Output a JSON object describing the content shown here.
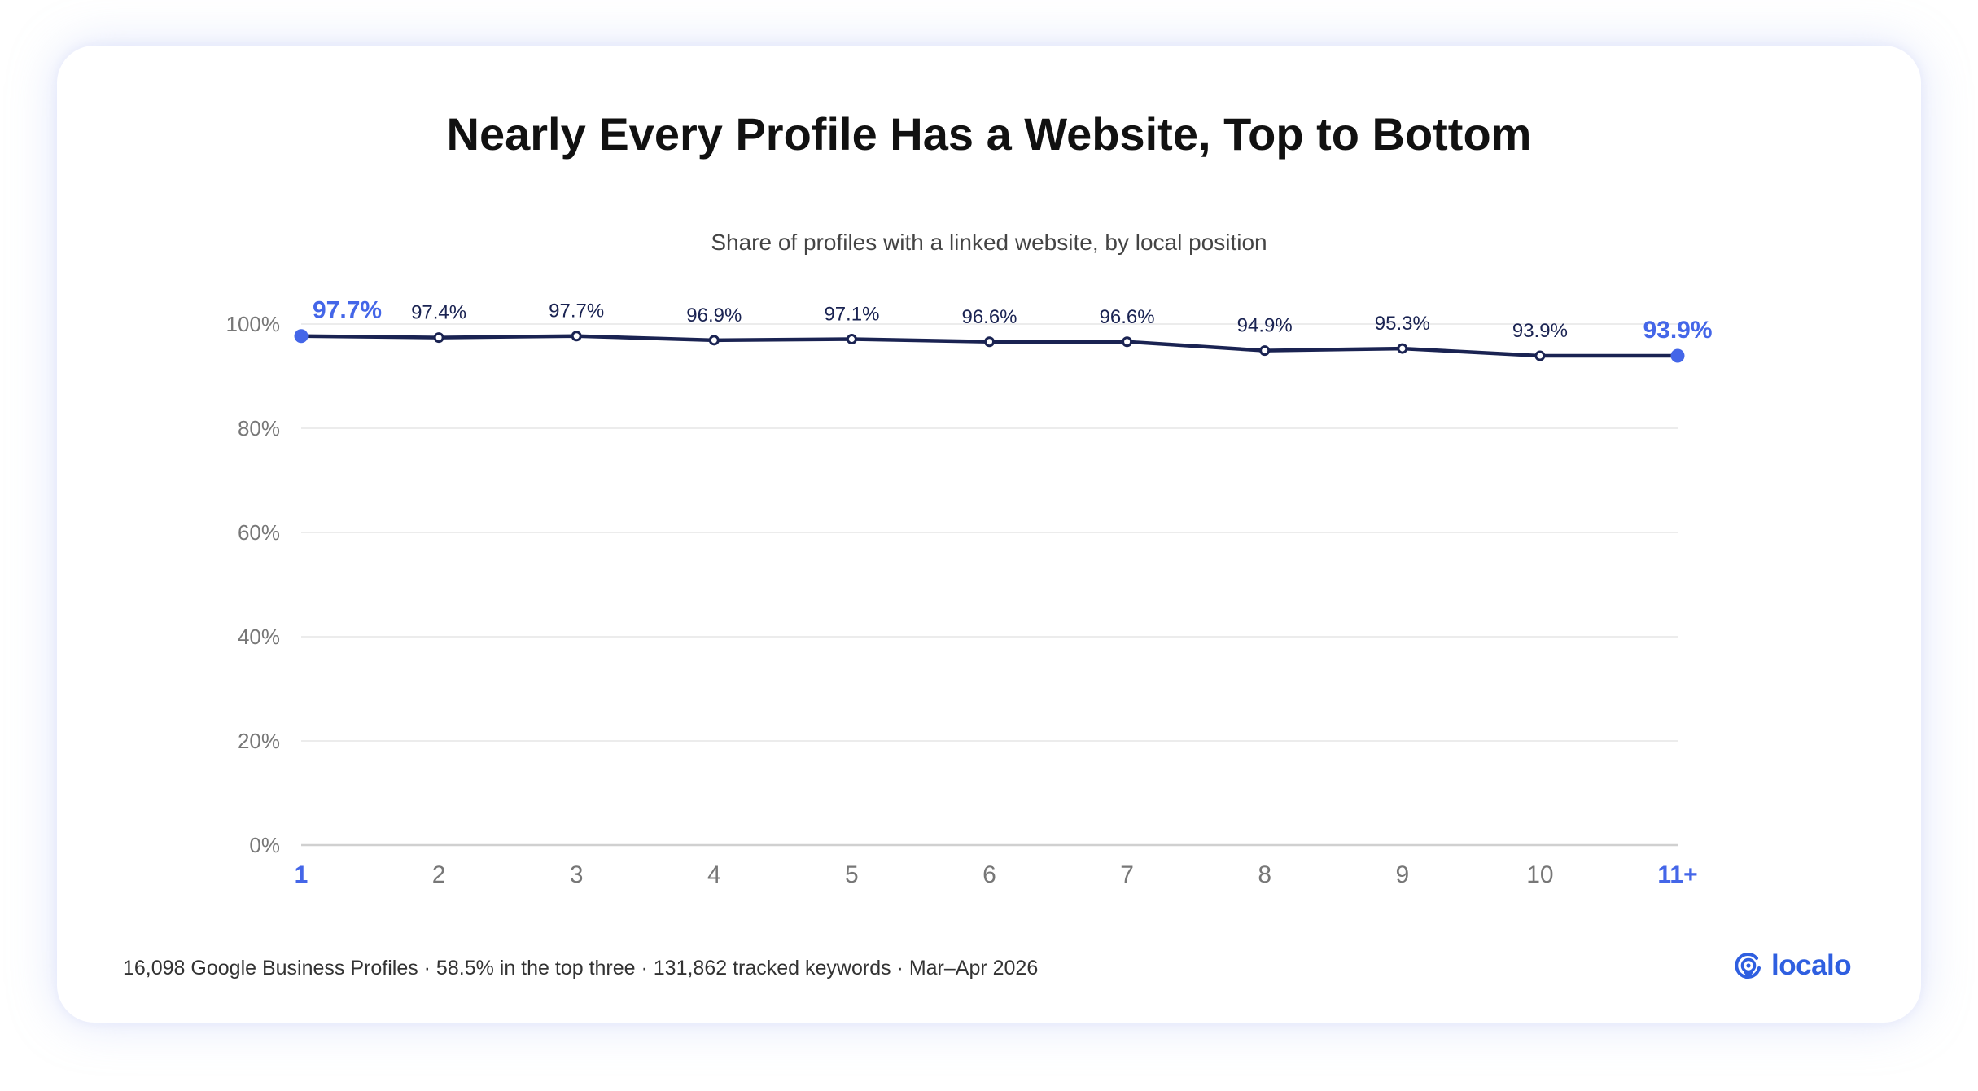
{
  "colors": {
    "line": "#1a2352",
    "highlight": "#4466e8",
    "grid": "#e6e6e6",
    "axis_text": "#777777",
    "brand": "#2f5fe0"
  },
  "chart_data": {
    "type": "line",
    "title": "Nearly Every Profile Has a Website, Top to Bottom",
    "subtitle": "Share of profiles with a linked website, by local position",
    "xlabel": "",
    "ylabel": "",
    "categories": [
      "1",
      "2",
      "3",
      "4",
      "5",
      "6",
      "7",
      "8",
      "9",
      "10",
      "11+"
    ],
    "values": [
      97.7,
      97.4,
      97.7,
      96.9,
      97.1,
      96.6,
      96.6,
      94.9,
      95.3,
      93.9,
      93.9
    ],
    "data_labels": [
      "97.7%",
      "97.4%",
      "97.7%",
      "96.9%",
      "97.1%",
      "96.6%",
      "96.6%",
      "94.9%",
      "95.3%",
      "93.9%",
      "93.9%"
    ],
    "highlighted_categories": [
      "1",
      "11+"
    ],
    "ylim": [
      0,
      100
    ],
    "yticks": [
      0,
      20,
      40,
      60,
      80,
      100
    ],
    "ytick_labels": [
      "0%",
      "20%",
      "40%",
      "60%",
      "80%",
      "100%"
    ],
    "grid": true,
    "legend": "none"
  },
  "footer": {
    "note": "16,098 Google Business Profiles · 58.5% in the top three · 131,862 tracked keywords · Mar–Apr 2026"
  },
  "brand": {
    "name": "localo",
    "icon": "location-pin-icon"
  }
}
